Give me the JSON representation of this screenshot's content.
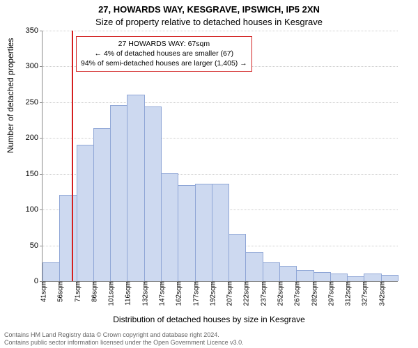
{
  "title": "27, HOWARDS WAY, KESGRAVE, IPSWICH, IP5 2XN",
  "subtitle": "Size of property relative to detached houses in Kesgrave",
  "xlabel": "Distribution of detached houses by size in Kesgrave",
  "ylabel": "Number of detached properties",
  "chart": {
    "type": "histogram",
    "ylim": [
      0,
      350
    ],
    "ytick_step": 50,
    "xticks": [
      "41sqm",
      "56sqm",
      "71sqm",
      "86sqm",
      "101sqm",
      "116sqm",
      "132sqm",
      "147sqm",
      "162sqm",
      "177sqm",
      "192sqm",
      "207sqm",
      "222sqm",
      "237sqm",
      "252sqm",
      "267sqm",
      "282sqm",
      "297sqm",
      "312sqm",
      "327sqm",
      "342sqm"
    ],
    "values": [
      25,
      120,
      190,
      213,
      245,
      260,
      243,
      150,
      133,
      135,
      135,
      65,
      40,
      25,
      20,
      15,
      12,
      10,
      6,
      10,
      8
    ],
    "bar_color": "#cdd9f0",
    "bar_border": "#8fa6d6",
    "grid_color": "#cccccc",
    "axis_color": "#888888",
    "background": "#ffffff",
    "marker_x_index": 1.73,
    "marker_color": "#d51f1f"
  },
  "annotation": {
    "line1": "27 HOWARDS WAY: 67sqm",
    "line2": "← 4% of detached houses are smaller (67)",
    "line3": "94% of semi-detached houses are larger (1,405) →",
    "border_color": "#d22222"
  },
  "footer": {
    "line1": "Contains HM Land Registry data © Crown copyright and database right 2024.",
    "line2": "Contains public sector information licensed under the Open Government Licence v3.0."
  }
}
